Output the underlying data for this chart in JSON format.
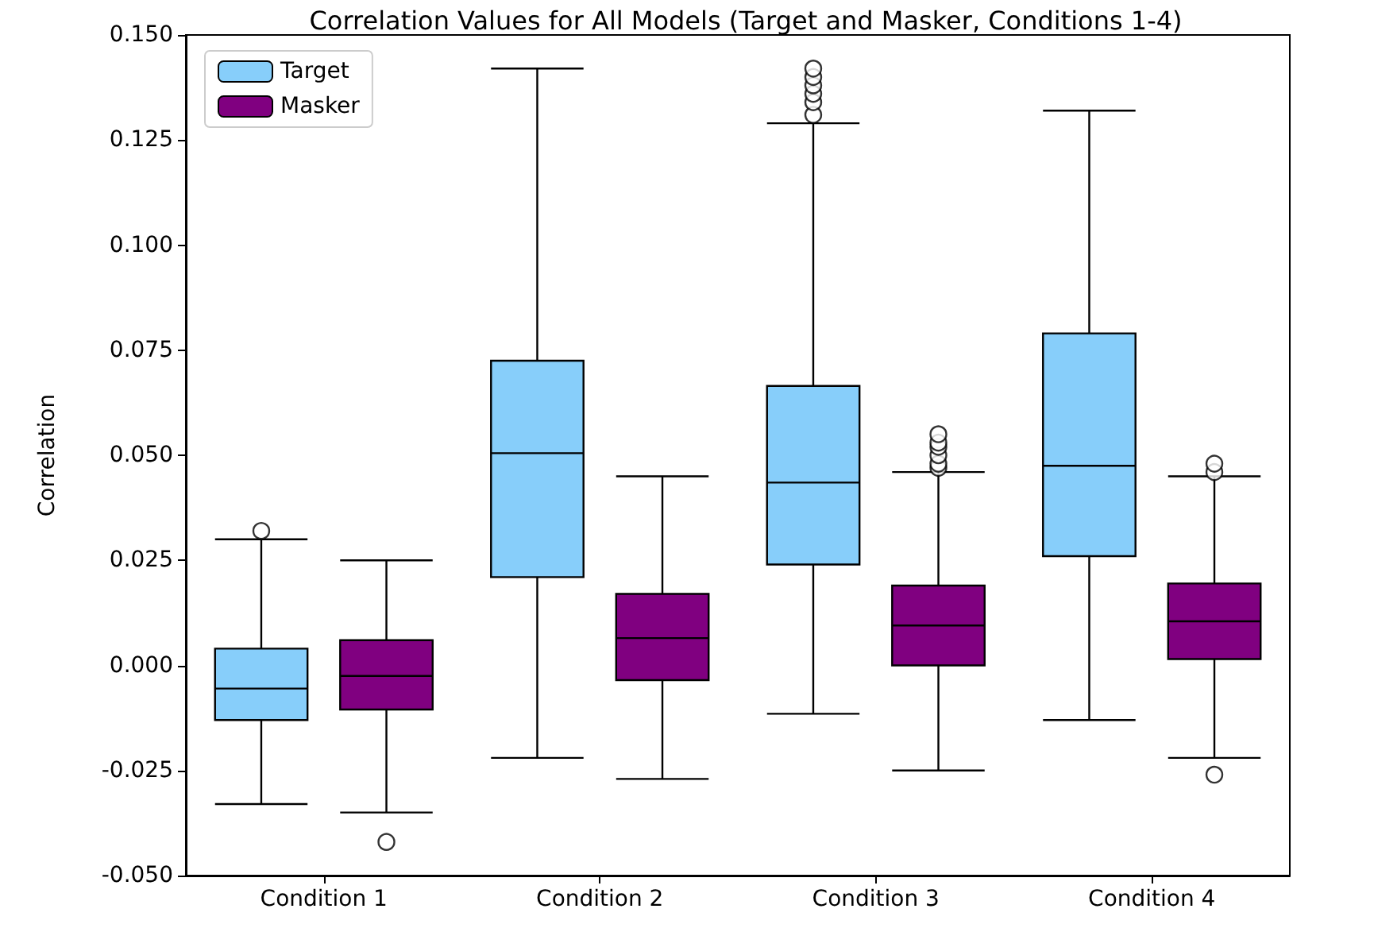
{
  "chart_data": {
    "type": "box",
    "title": "Correlation Values for All Models (Target and Masker, Conditions 1-4)",
    "ylabel": "Correlation",
    "categories": [
      "Condition 1",
      "Condition 2",
      "Condition 3",
      "Condition 4"
    ],
    "series": [
      {
        "name": "Target",
        "color": "#87cefa",
        "boxes": [
          {
            "low": -0.033,
            "q1": -0.013,
            "median": -0.0055,
            "q3": 0.004,
            "high": 0.03,
            "outliers": [
              0.032
            ]
          },
          {
            "low": -0.022,
            "q1": 0.021,
            "median": 0.0505,
            "q3": 0.0725,
            "high": 0.142
          },
          {
            "low": -0.0115,
            "q1": 0.024,
            "median": 0.0435,
            "q3": 0.0665,
            "high": 0.129,
            "outliers": [
              0.131,
              0.134,
              0.136,
              0.138,
              0.14,
              0.142
            ]
          },
          {
            "low": -0.013,
            "q1": 0.026,
            "median": 0.0475,
            "q3": 0.079,
            "high": 0.132
          }
        ]
      },
      {
        "name": "Masker",
        "color": "#800080",
        "boxes": [
          {
            "low": -0.035,
            "q1": -0.0105,
            "median": -0.0025,
            "q3": 0.006,
            "high": 0.025,
            "outliers": [
              -0.042
            ]
          },
          {
            "low": -0.027,
            "q1": -0.0035,
            "median": 0.0065,
            "q3": 0.017,
            "high": 0.045
          },
          {
            "low": -0.025,
            "q1": 0.0,
            "median": 0.0095,
            "q3": 0.019,
            "high": 0.046,
            "outliers": [
              0.047,
              0.048,
              0.05,
              0.052,
              0.053,
              0.055
            ]
          },
          {
            "low": -0.022,
            "q1": 0.0015,
            "median": 0.0105,
            "q3": 0.0195,
            "high": 0.045,
            "outliers": [
              0.046,
              0.048,
              -0.026
            ]
          }
        ]
      }
    ],
    "ylim": [
      -0.05,
      0.15
    ],
    "yticks": [
      {
        "value": -0.05,
        "label": "-0.050"
      },
      {
        "value": -0.025,
        "label": "-0.025"
      },
      {
        "value": 0,
        "label": "0.000"
      },
      {
        "value": 0.025,
        "label": "0.025"
      },
      {
        "value": 0.05,
        "label": "0.050"
      },
      {
        "value": 0.075,
        "label": "0.075"
      },
      {
        "value": 0.1,
        "label": "0.100"
      },
      {
        "value": 0.125,
        "label": "0.125"
      },
      {
        "value": 0.15,
        "label": "0.150"
      }
    ],
    "legend": "top left",
    "grid": false
  }
}
